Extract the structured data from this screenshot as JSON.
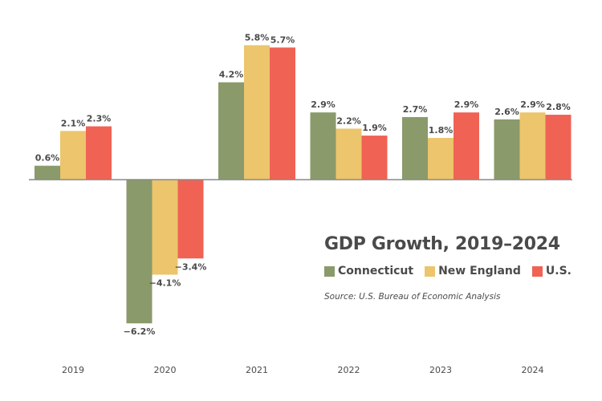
{
  "chart_data": {
    "type": "bar",
    "title": "GDP Growth, 2019–2024",
    "source": "Source: U.S. Bureau of Economic Analysis",
    "categories": [
      "2019",
      "2020",
      "2021",
      "2022",
      "2023",
      "2024"
    ],
    "series": [
      {
        "name": "Connecticut",
        "color": "#8a9a6b",
        "values": [
          0.6,
          -6.2,
          4.2,
          2.9,
          2.7,
          2.6
        ],
        "labels": [
          "0.6%",
          "−6.2%",
          "4.2%",
          "2.9%",
          "2.7%",
          "2.6%"
        ]
      },
      {
        "name": "New England",
        "color": "#ecc56c",
        "values": [
          2.1,
          -4.1,
          5.8,
          2.2,
          1.8,
          2.9
        ],
        "labels": [
          "2.1%",
          "−4.1%",
          "5.8%",
          "2.2%",
          "1.8%",
          "2.9%"
        ]
      },
      {
        "name": "U.S.",
        "color": "#f06254",
        "values": [
          2.3,
          -3.4,
          5.7,
          1.9,
          2.9,
          2.8
        ],
        "labels": [
          "2.3%",
          "−3.4%",
          "5.7%",
          "1.9%",
          "2.9%",
          "2.8%"
        ]
      }
    ],
    "xlabel": "",
    "ylabel": "",
    "ylim": [
      -6.2,
      5.8
    ],
    "grid": false,
    "legend_position": "bottom-right",
    "value_format": "percent"
  }
}
